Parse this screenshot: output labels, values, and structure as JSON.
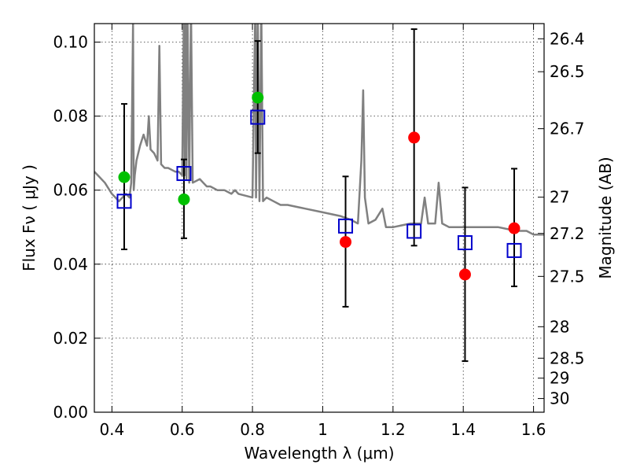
{
  "chart_data": {
    "type": "scatter",
    "title": "",
    "xlabel": "Wavelength  λ (μm)",
    "ylabel": "Flux  Fν  ( μJy )",
    "y2label": "Magnitude (AB)",
    "xlim": [
      0.35,
      1.63
    ],
    "ylim": [
      0.0,
      0.105
    ],
    "grid": true,
    "x_ticks": [
      0.4,
      0.6,
      0.8,
      1.0,
      1.2,
      1.4,
      1.6
    ],
    "x_tick_labels": [
      "0.4",
      "0.6",
      "0.8",
      "1",
      "1.2",
      "1.4",
      "1.6"
    ],
    "y_ticks": [
      0.0,
      0.02,
      0.04,
      0.06,
      0.08,
      0.1
    ],
    "y_tick_labels": [
      "0.00",
      "0.02",
      "0.04",
      "0.06",
      "0.08",
      "0.10"
    ],
    "mag_ticks": [
      {
        "label": "26.4",
        "flux": 0.1009
      },
      {
        "label": "26.5",
        "flux": 0.092
      },
      {
        "label": "26.7",
        "flux": 0.0766
      },
      {
        "label": "27",
        "flux": 0.0581
      },
      {
        "label": "27.2",
        "flux": 0.0483
      },
      {
        "label": "27.5",
        "flux": 0.0367
      },
      {
        "label": "28",
        "flux": 0.0231
      },
      {
        "label": "28.5",
        "flux": 0.0146
      },
      {
        "label": "29",
        "flux": 0.0092
      },
      {
        "label": "30",
        "flux": 0.0037
      }
    ],
    "colors": {
      "model": "#808080",
      "green_points": "#00c000",
      "red_points": "#ff0000",
      "squares": "#0000cc",
      "errorbars": "#000000"
    },
    "series": [
      {
        "name": "model spectrum",
        "kind": "line",
        "x": [
          0.35,
          0.38,
          0.4,
          0.42,
          0.44,
          0.45,
          0.455,
          0.46,
          0.462,
          0.465,
          0.47,
          0.48,
          0.49,
          0.5,
          0.505,
          0.51,
          0.52,
          0.53,
          0.535,
          0.54,
          0.55,
          0.56,
          0.58,
          0.59,
          0.6,
          0.605,
          0.607,
          0.61,
          0.612,
          0.615,
          0.62,
          0.625,
          0.63,
          0.65,
          0.66,
          0.67,
          0.68,
          0.7,
          0.72,
          0.74,
          0.75,
          0.76,
          0.8,
          0.808,
          0.81,
          0.815,
          0.82,
          0.825,
          0.83,
          0.84,
          0.86,
          0.88,
          0.9,
          0.95,
          1.0,
          1.05,
          1.08,
          1.1,
          1.11,
          1.115,
          1.12,
          1.13,
          1.15,
          1.17,
          1.18,
          1.2,
          1.25,
          1.28,
          1.29,
          1.3,
          1.32,
          1.33,
          1.34,
          1.36,
          1.4,
          1.45,
          1.5,
          1.55,
          1.58,
          1.6,
          1.63
        ],
        "y": [
          0.065,
          0.062,
          0.059,
          0.057,
          0.059,
          0.058,
          0.062,
          0.105,
          0.06,
          0.064,
          0.068,
          0.072,
          0.075,
          0.072,
          0.08,
          0.071,
          0.07,
          0.068,
          0.099,
          0.067,
          0.066,
          0.066,
          0.065,
          0.065,
          0.064,
          0.11,
          0.064,
          0.11,
          0.063,
          0.11,
          0.062,
          0.11,
          0.062,
          0.063,
          0.062,
          0.061,
          0.061,
          0.06,
          0.06,
          0.059,
          0.06,
          0.059,
          0.058,
          0.11,
          0.058,
          0.11,
          0.057,
          0.11,
          0.057,
          0.058,
          0.057,
          0.056,
          0.056,
          0.055,
          0.054,
          0.053,
          0.052,
          0.051,
          0.068,
          0.087,
          0.058,
          0.051,
          0.052,
          0.055,
          0.05,
          0.05,
          0.051,
          0.051,
          0.058,
          0.051,
          0.051,
          0.062,
          0.051,
          0.05,
          0.05,
          0.05,
          0.05,
          0.049,
          0.049,
          0.048,
          0.048
        ]
      },
      {
        "name": "green detections",
        "kind": "points",
        "x": [
          0.435,
          0.605,
          0.815
        ],
        "y": [
          0.0635,
          0.0575,
          0.085
        ]
      },
      {
        "name": "red detections",
        "kind": "points",
        "x": [
          1.065,
          1.26,
          1.405,
          1.545
        ],
        "y": [
          0.046,
          0.0742,
          0.0372,
          0.0497
        ]
      },
      {
        "name": "model photometry",
        "kind": "squares",
        "x": [
          0.435,
          0.605,
          0.815,
          1.065,
          1.26,
          1.405,
          1.545
        ],
        "y": [
          0.057,
          0.0645,
          0.0797,
          0.0503,
          0.0489,
          0.0458,
          0.0437
        ],
        "err_low": [
          0.044,
          0.047,
          0.07,
          0.0285,
          0.045,
          0.0138,
          0.034
        ],
        "err_high": [
          0.0833,
          0.0683,
          0.1003,
          0.0637,
          0.1035,
          0.0607,
          0.0658
        ]
      }
    ]
  }
}
